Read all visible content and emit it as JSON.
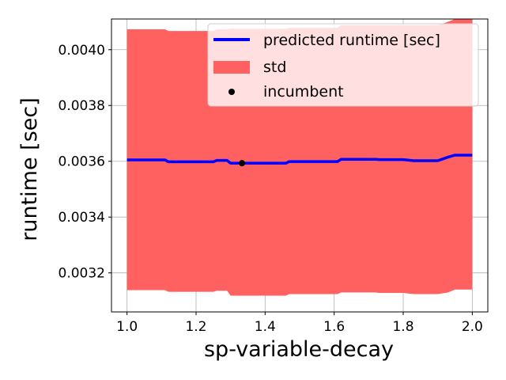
{
  "chart_data": {
    "type": "line",
    "title": "",
    "xlabel": "sp-variable-decay",
    "ylabel": "runtime [sec]",
    "xlim": [
      0.955,
      2.045
    ],
    "ylim": [
      0.00306,
      0.00411
    ],
    "xticks": [
      1.0,
      1.2,
      1.4,
      1.6,
      1.8,
      2.0
    ],
    "xtick_labels": [
      "1.0",
      "1.2",
      "1.4",
      "1.6",
      "1.8",
      "2.0"
    ],
    "yticks": [
      0.0032,
      0.0034,
      0.0036,
      0.0038,
      0.004
    ],
    "ytick_labels": [
      "0.0032",
      "0.0034",
      "0.0036",
      "0.0038",
      "0.0040"
    ],
    "grid": true,
    "legend_position": "top-right",
    "series": [
      {
        "name": "predicted runtime [sec]",
        "kind": "line",
        "color": "#0000ff",
        "x": [
          1.0,
          1.11,
          1.12,
          1.25,
          1.26,
          1.29,
          1.3,
          1.46,
          1.47,
          1.61,
          1.62,
          1.72,
          1.73,
          1.8,
          1.83,
          1.9,
          1.93,
          1.95,
          2.0
        ],
        "y": [
          0.003605,
          0.003605,
          0.003598,
          0.003598,
          0.003603,
          0.003603,
          0.003593,
          0.003593,
          0.003599,
          0.003599,
          0.003607,
          0.003607,
          0.003606,
          0.003606,
          0.003602,
          0.003602,
          0.003615,
          0.003622,
          0.003622
        ]
      },
      {
        "name": "std",
        "kind": "band",
        "color": "#ff6060",
        "x": [
          1.0,
          1.11,
          1.12,
          1.25,
          1.26,
          1.29,
          1.3,
          1.46,
          1.47,
          1.61,
          1.62,
          1.72,
          1.73,
          1.8,
          1.83,
          1.9,
          1.93,
          1.95,
          2.0
        ],
        "upper": [
          0.004073,
          0.004073,
          0.004067,
          0.004067,
          0.004073,
          0.004073,
          0.004075,
          0.004075,
          0.004078,
          0.004078,
          0.004088,
          0.004088,
          0.004088,
          0.004088,
          0.004088,
          0.004088,
          0.0041,
          0.00411,
          0.00411
        ],
        "lower": [
          0.003138,
          0.003138,
          0.003132,
          0.003132,
          0.003136,
          0.003136,
          0.003118,
          0.003118,
          0.003124,
          0.003124,
          0.00313,
          0.00313,
          0.003128,
          0.003128,
          0.003124,
          0.003124,
          0.00313,
          0.00314,
          0.00314
        ]
      },
      {
        "name": "incumbent",
        "kind": "scatter",
        "color": "#000000",
        "x": [
          1.333
        ],
        "y": [
          0.003593
        ]
      }
    ]
  }
}
